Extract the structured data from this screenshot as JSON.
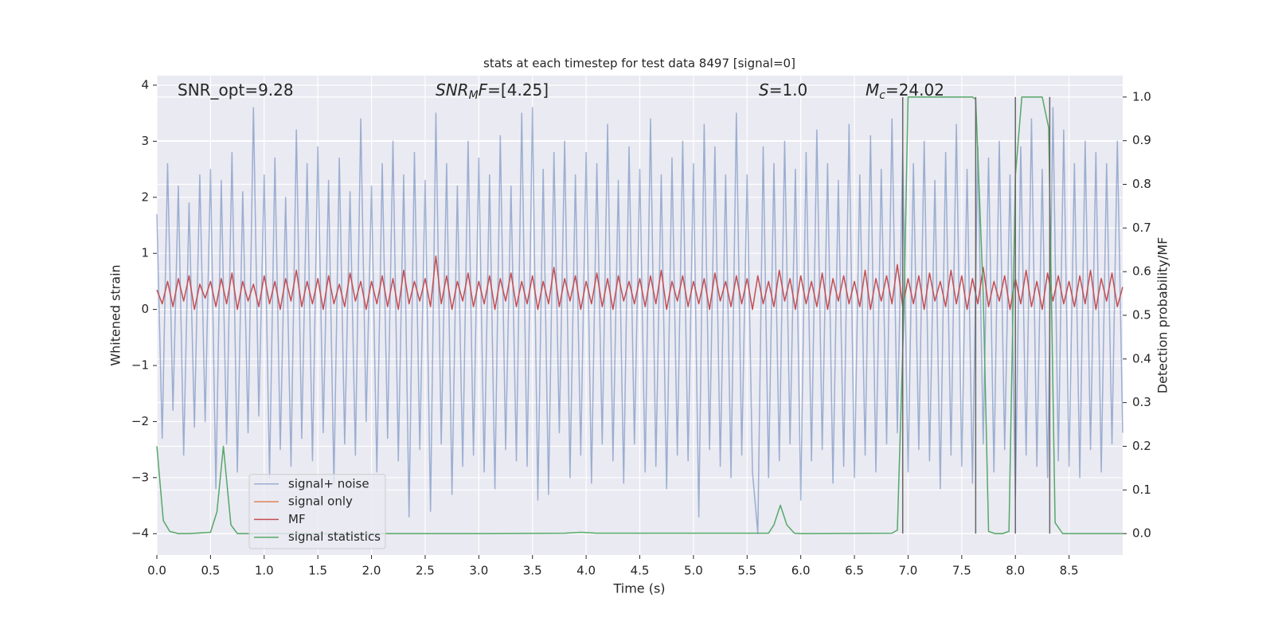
{
  "chart_data": {
    "type": "line",
    "title": "stats at each timestep for test data 8497 [signal=0]",
    "xlabel": "Time (s)",
    "ylabel": "Whitened strain",
    "y2label": "Detection probability/MF",
    "xlim": [
      0,
      9.0
    ],
    "ylim": [
      -4.38,
      4.17
    ],
    "y2lim": [
      -0.049,
      1.049
    ],
    "xticks": [
      {
        "value": 0,
        "label": "0.0"
      },
      0.5,
      {
        "value": 1,
        "label": "1.0"
      },
      1.5,
      {
        "value": 2,
        "label": "2.0"
      },
      2.5,
      {
        "value": 3,
        "label": "3.0"
      },
      3.5,
      {
        "value": 4,
        "label": "4.0"
      },
      4.5,
      {
        "value": 5,
        "label": "5.0"
      },
      5.5,
      {
        "value": 6,
        "label": "6.0"
      },
      6.5,
      {
        "value": 7,
        "label": "7.0"
      },
      7.5,
      {
        "value": 8,
        "label": "8.0"
      },
      8.5
    ],
    "yticks": [
      {
        "value": -4,
        "label": "−4"
      },
      {
        "value": -3,
        "label": "−3"
      },
      {
        "value": -2,
        "label": "−2"
      },
      {
        "value": -1,
        "label": "−1"
      },
      0,
      1,
      2,
      3,
      4
    ],
    "y2ticks": [
      {
        "value": 0,
        "label": "0.0"
      },
      0.1,
      0.2,
      0.3,
      0.4,
      0.5,
      0.6,
      0.7,
      0.8,
      0.9,
      {
        "value": 1,
        "label": "1.0"
      }
    ],
    "grid": true,
    "legend": "lower left",
    "annotations": [
      [
        {
          "text": "SNR_opt=9.28"
        }
      ],
      [
        {
          "text": "SNR",
          "style": "italic"
        },
        {
          "text": "M",
          "style": "sub"
        },
        {
          "text": "F",
          "style": "italic"
        },
        {
          "text": "=[4.25]"
        }
      ],
      [
        {
          "text": "S",
          "style": "italic"
        },
        {
          "text": "=1.0"
        }
      ],
      [
        {
          "text": "M",
          "style": "italic"
        },
        {
          "text": "c",
          "style": "sub"
        },
        {
          "text": "=24.02"
        }
      ]
    ],
    "vlines": {
      "color": "#666666",
      "axis": "y2",
      "x": [
        6.95,
        7.63,
        8.0,
        8.32
      ],
      "ymin": 0,
      "ymax": 1
    },
    "series": [
      {
        "name": "signal+ noise",
        "color": "#4c72b0",
        "alpha": 0.5,
        "x": [
          0,
          0.05,
          0.1,
          0.15,
          0.2,
          0.25,
          0.3,
          0.35,
          0.4,
          0.45,
          0.5,
          0.55,
          0.6,
          0.65,
          0.7,
          0.75,
          0.8,
          0.85,
          0.9,
          0.95,
          1,
          1.05,
          1.1,
          1.15,
          1.2,
          1.25,
          1.3,
          1.35,
          1.4,
          1.45,
          1.5,
          1.55,
          1.6,
          1.65,
          1.7,
          1.75,
          1.8,
          1.85,
          1.9,
          1.95,
          2,
          2.05,
          2.1,
          2.15,
          2.2,
          2.25,
          2.3,
          2.35,
          2.4,
          2.45,
          2.5,
          2.55,
          2.6,
          2.65,
          2.7,
          2.75,
          2.8,
          2.85,
          2.9,
          2.95,
          3,
          3.05,
          3.1,
          3.15,
          3.2,
          3.25,
          3.3,
          3.35,
          3.4,
          3.45,
          3.5,
          3.55,
          3.6,
          3.65,
          3.7,
          3.75,
          3.8,
          3.85,
          3.9,
          3.95,
          4,
          4.05,
          4.1,
          4.15,
          4.2,
          4.25,
          4.3,
          4.35,
          4.4,
          4.45,
          4.5,
          4.55,
          4.6,
          4.65,
          4.7,
          4.75,
          4.8,
          4.85,
          4.9,
          4.95,
          5,
          5.05,
          5.1,
          5.15,
          5.2,
          5.25,
          5.3,
          5.35,
          5.4,
          5.45,
          5.5,
          5.55,
          5.6,
          5.65,
          5.7,
          5.75,
          5.8,
          5.85,
          5.9,
          5.95,
          6,
          6.05,
          6.1,
          6.15,
          6.2,
          6.25,
          6.3,
          6.35,
          6.4,
          6.45,
          6.5,
          6.55,
          6.6,
          6.65,
          6.7,
          6.75,
          6.8,
          6.85,
          6.9,
          6.95,
          7,
          7.05,
          7.1,
          7.15,
          7.2,
          7.25,
          7.3,
          7.35,
          7.4,
          7.45,
          7.5,
          7.55,
          7.6,
          7.65,
          7.7,
          7.75,
          7.8,
          7.85,
          7.9,
          7.95,
          8,
          8.05,
          8.1,
          8.15,
          8.2,
          8.25,
          8.3,
          8.35,
          8.4,
          8.45,
          8.5,
          8.55,
          8.6,
          8.65,
          8.7,
          8.75,
          8.8,
          8.85,
          8.9,
          8.95,
          9
        ],
        "values": [
          1.7,
          -2.3,
          2.6,
          -1.8,
          2.2,
          -2.6,
          1.9,
          -2.1,
          2.4,
          -2.0,
          2.5,
          -3.2,
          2.3,
          -2.4,
          2.8,
          -2.9,
          2.1,
          -2.2,
          3.6,
          -1.9,
          2.4,
          -3.0,
          2.7,
          -2.5,
          2.0,
          -2.8,
          3.2,
          -2.3,
          2.6,
          -2.7,
          2.9,
          -2.2,
          2.3,
          -3.1,
          2.7,
          -2.4,
          2.1,
          -2.6,
          3.4,
          -2.0,
          2.2,
          -2.9,
          2.6,
          -2.3,
          3.0,
          -2.7,
          2.4,
          -3.7,
          2.8,
          -2.5,
          2.3,
          -3.6,
          3.5,
          -2.4,
          2.6,
          -3.3,
          2.2,
          -2.8,
          3.0,
          -2.6,
          2.7,
          -2.9,
          2.4,
          -3.2,
          3.1,
          -2.5,
          2.2,
          -2.7,
          3.5,
          -2.8,
          3.6,
          -3.4,
          2.5,
          -3.3,
          2.8,
          -2.2,
          3.0,
          -3.0,
          2.4,
          -2.6,
          2.8,
          -3.1,
          2.6,
          -2.4,
          3.3,
          -2.7,
          2.3,
          -3.1,
          2.9,
          -2.4,
          2.5,
          -2.9,
          3.4,
          -2.8,
          2.4,
          -3.2,
          2.7,
          -2.6,
          3.0,
          -2.7,
          2.6,
          -3.7,
          3.3,
          -2.5,
          2.9,
          -2.8,
          2.4,
          -3.0,
          3.5,
          -2.6,
          2.4,
          -2.9,
          -4.0,
          2.9,
          -3.0,
          2.6,
          -2.7,
          3.0,
          -2.4,
          2.5,
          -3.4,
          2.8,
          -2.7,
          3.2,
          -2.5,
          2.6,
          -3.1,
          2.3,
          -2.8,
          3.3,
          -3.0,
          2.4,
          -2.6,
          3.1,
          -2.9,
          2.5,
          -2.4,
          3.4,
          -2.2,
          2.8,
          -2.9,
          2.6,
          -2.5,
          3.0,
          -2.7,
          2.3,
          -3.2,
          2.8,
          -2.6,
          3.3,
          -2.8,
          2.5,
          -3.1,
          2.9,
          -2.4,
          2.7,
          -2.9,
          3.0,
          -2.5,
          2.4,
          -3.4,
          2.9,
          -2.6,
          3.4,
          -2.8,
          2.5,
          -3.0,
          3.6,
          -2.7,
          3.2,
          -2.8,
          2.6,
          -3.0,
          3.0,
          -2.5,
          2.8,
          -2.9,
          2.6,
          -2.4,
          3.0,
          -2.2
        ]
      },
      {
        "name": "signal only",
        "color": "#dd8452",
        "x": [],
        "values": []
      },
      {
        "name": "MF",
        "color": "#c44e52",
        "x": [
          0,
          0.05,
          0.1,
          0.15,
          0.2,
          0.25,
          0.3,
          0.35,
          0.4,
          0.45,
          0.5,
          0.55,
          0.6,
          0.65,
          0.7,
          0.75,
          0.8,
          0.85,
          0.9,
          0.95,
          1,
          1.05,
          1.1,
          1.15,
          1.2,
          1.25,
          1.3,
          1.35,
          1.4,
          1.45,
          1.5,
          1.55,
          1.6,
          1.65,
          1.7,
          1.75,
          1.8,
          1.85,
          1.9,
          1.95,
          2,
          2.05,
          2.1,
          2.15,
          2.2,
          2.25,
          2.3,
          2.35,
          2.4,
          2.45,
          2.5,
          2.55,
          2.6,
          2.65,
          2.7,
          2.75,
          2.8,
          2.85,
          2.9,
          2.95,
          3,
          3.05,
          3.1,
          3.15,
          3.2,
          3.25,
          3.3,
          3.35,
          3.4,
          3.45,
          3.5,
          3.55,
          3.6,
          3.65,
          3.7,
          3.75,
          3.8,
          3.85,
          3.9,
          3.95,
          4,
          4.05,
          4.1,
          4.15,
          4.2,
          4.25,
          4.3,
          4.35,
          4.4,
          4.45,
          4.5,
          4.55,
          4.6,
          4.65,
          4.7,
          4.75,
          4.8,
          4.85,
          4.9,
          4.95,
          5,
          5.05,
          5.1,
          5.15,
          5.2,
          5.25,
          5.3,
          5.35,
          5.4,
          5.45,
          5.5,
          5.55,
          5.6,
          5.65,
          5.7,
          5.75,
          5.8,
          5.85,
          5.9,
          5.95,
          6,
          6.05,
          6.1,
          6.15,
          6.2,
          6.25,
          6.3,
          6.35,
          6.4,
          6.45,
          6.5,
          6.55,
          6.6,
          6.65,
          6.7,
          6.75,
          6.8,
          6.85,
          6.9,
          6.95,
          7,
          7.05,
          7.1,
          7.15,
          7.2,
          7.25,
          7.3,
          7.35,
          7.4,
          7.45,
          7.5,
          7.55,
          7.6,
          7.65,
          7.7,
          7.75,
          7.8,
          7.85,
          7.9,
          7.95,
          8,
          8.05,
          8.1,
          8.15,
          8.2,
          8.25,
          8.3,
          8.35,
          8.4,
          8.45,
          8.5,
          8.55,
          8.6,
          8.65,
          8.7,
          8.75,
          8.8,
          8.85,
          8.9,
          8.95,
          9
        ],
        "values": [
          0.35,
          0.1,
          0.5,
          0.05,
          0.55,
          0.15,
          0.6,
          0.0,
          0.45,
          0.2,
          0.5,
          0.05,
          0.55,
          0.1,
          0.65,
          0.0,
          0.5,
          0.15,
          0.45,
          0.05,
          0.6,
          0.1,
          0.5,
          0.0,
          0.55,
          0.15,
          0.7,
          0.05,
          0.5,
          0.1,
          0.55,
          0.0,
          0.6,
          0.1,
          0.45,
          0.05,
          0.65,
          0.15,
          0.5,
          0.0,
          0.5,
          0.1,
          0.6,
          0.05,
          0.55,
          0.0,
          0.7,
          0.1,
          0.5,
          0.15,
          0.55,
          0.05,
          0.95,
          0.1,
          0.6,
          0.0,
          0.5,
          0.15,
          0.65,
          0.05,
          0.5,
          0.1,
          0.6,
          0.0,
          0.55,
          0.15,
          0.65,
          0.05,
          0.5,
          0.1,
          0.6,
          0.0,
          0.5,
          0.1,
          0.75,
          0.05,
          0.55,
          0.15,
          0.6,
          0.0,
          0.5,
          0.1,
          0.65,
          0.05,
          0.55,
          0.0,
          0.6,
          0.15,
          0.5,
          0.1,
          0.55,
          0.05,
          0.6,
          0.1,
          0.7,
          0.0,
          0.5,
          0.15,
          0.6,
          0.05,
          0.5,
          0.1,
          0.55,
          0.0,
          0.65,
          0.15,
          0.5,
          0.05,
          0.6,
          0.1,
          0.55,
          0.0,
          0.6,
          0.1,
          0.5,
          0.05,
          0.7,
          0.15,
          0.55,
          0.0,
          0.6,
          0.1,
          0.5,
          0.05,
          0.65,
          0.0,
          0.55,
          0.15,
          0.6,
          0.1,
          0.5,
          0.05,
          0.7,
          0.0,
          0.55,
          0.15,
          0.6,
          0.1,
          0.8,
          0.05,
          0.55,
          0.1,
          0.6,
          0.0,
          0.65,
          0.15,
          0.5,
          0.05,
          0.7,
          0.1,
          0.6,
          0.0,
          0.55,
          0.1,
          0.75,
          0.05,
          0.5,
          0.15,
          0.6,
          0.0,
          0.55,
          0.1,
          0.7,
          0.05,
          0.5,
          0.0,
          0.65,
          0.15,
          0.6,
          0.1,
          0.5,
          0.05,
          0.6,
          0.1,
          0.7,
          0.0,
          0.55,
          0.15,
          0.65,
          0.05,
          0.4
        ]
      },
      {
        "name": "signal statistics",
        "color": "#55a868",
        "axis": "y2",
        "x": [
          0,
          0.06,
          0.12,
          0.2,
          0.3,
          0.5,
          0.56,
          0.62,
          0.69,
          0.75,
          0.9,
          2,
          3,
          3.8,
          3.95,
          4.1,
          5,
          5.5,
          5.7,
          5.75,
          5.81,
          5.87,
          5.94,
          6,
          6.85,
          6.9,
          6.96,
          7.0,
          7.3,
          7.6,
          7.63,
          7.7,
          7.75,
          7.81,
          7.88,
          7.94,
          8.0,
          8.06,
          8.25,
          8.31,
          8.37,
          8.44,
          9.0
        ],
        "values": [
          0.2,
          0.03,
          0.005,
          0,
          0,
          0.003,
          0.05,
          0.2,
          0.02,
          0,
          0,
          0,
          0,
          0.001,
          0.003,
          0.001,
          0.001,
          0.001,
          0.001,
          0.02,
          0.065,
          0.02,
          0.001,
          0,
          0.001,
          0.008,
          0.5,
          1.0,
          1.0,
          1.0,
          0.995,
          0.55,
          0.005,
          0,
          0,
          0.005,
          0.82,
          1.0,
          1.0,
          0.93,
          0.025,
          0,
          0
        ]
      }
    ]
  }
}
